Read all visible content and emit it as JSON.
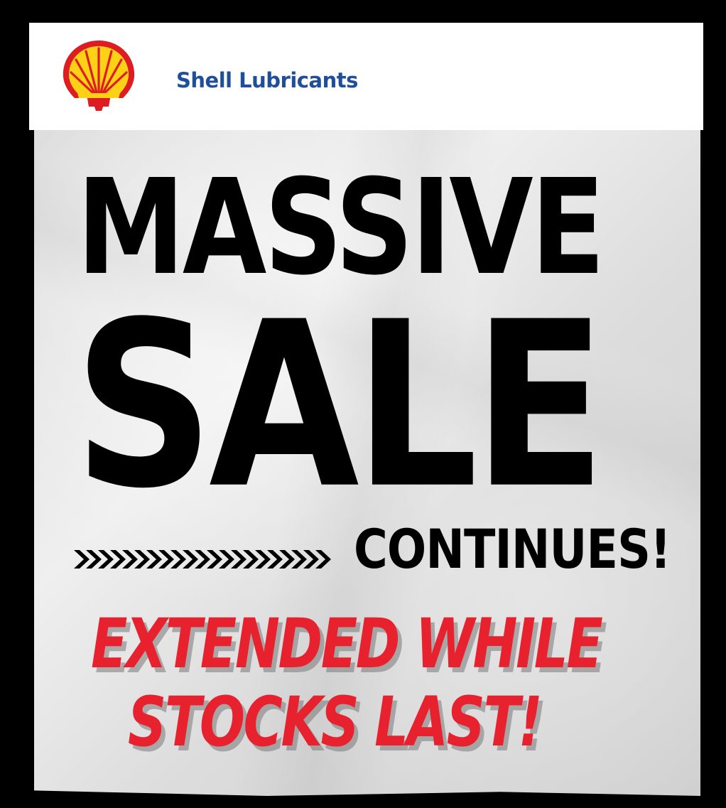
{
  "header": {
    "logo_icon": "shell-pecten-logo",
    "brand": "Shell Lubricants"
  },
  "headline": {
    "line1": "MASSIVE",
    "line2": "SALE",
    "line3": "CONTINUES!"
  },
  "tagline": {
    "line1": "EXTENDED WHILE",
    "line2": "STOCKS LAST!"
  },
  "colors": {
    "brand_blue": "#1f4f9a",
    "shell_yellow": "#fcd116",
    "shell_red": "#dd1d21",
    "tagline_red": "#e8212e",
    "background": "#000000",
    "paper": "#e3e3e3"
  }
}
